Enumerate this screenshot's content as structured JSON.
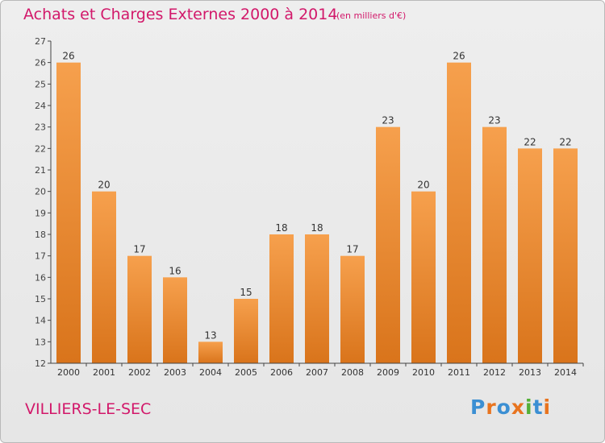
{
  "title": "Achats et Charges Externes 2000 à 2014",
  "subtitle": "(en milliers d'€)",
  "place": "VILLIERS-LE-SEC",
  "logo": {
    "text": "Proxiti",
    "colors": [
      "#3b8fd3",
      "#e8741f",
      "#3b8fd3",
      "#e8741f",
      "#54b037",
      "#3b8fd3",
      "#e8741f"
    ]
  },
  "colors": {
    "title": "#d2186a",
    "bar_light": "#f6a04d",
    "bar_dark": "#d9741b",
    "axis": "#444444"
  },
  "chart_data": {
    "type": "bar",
    "title": "Achats et Charges Externes 2000 à 2014",
    "categories": [
      "2000",
      "2001",
      "2002",
      "2003",
      "2004",
      "2005",
      "2006",
      "2007",
      "2008",
      "2009",
      "2010",
      "2011",
      "2012",
      "2013",
      "2014"
    ],
    "values": [
      26,
      20,
      17,
      16,
      13,
      15,
      18,
      18,
      17,
      23,
      20,
      26,
      23,
      22,
      22
    ],
    "ylim": [
      12,
      27
    ],
    "yticks": [
      12,
      13,
      14,
      15,
      16,
      17,
      18,
      19,
      20,
      21,
      22,
      23,
      24,
      25,
      26,
      27
    ],
    "grid": false,
    "xlabel": "",
    "ylabel": ""
  }
}
